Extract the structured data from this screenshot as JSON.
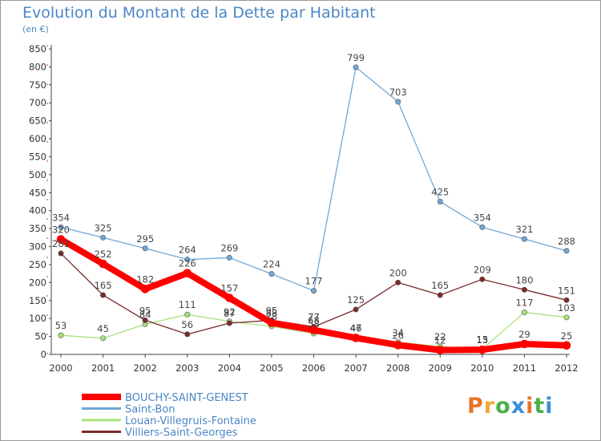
{
  "header": {
    "title": "Evolution du Montant de la Dette par Habitant",
    "unit": "(en €)"
  },
  "logo": {
    "text": "Proxiti",
    "colors": [
      "#e8732a",
      "#f2a43a",
      "#4bb04a",
      "#3c8dd6",
      "#e8732a",
      "#4bb04a",
      "#3c8dd6"
    ]
  },
  "chart_data": {
    "type": "line",
    "title": "Evolution du Montant de la Dette par Habitant",
    "subtitle": "(en €)",
    "x": [
      "2000",
      "2001",
      "2002",
      "2003",
      "2004",
      "2005",
      "2006",
      "2007",
      "2008",
      "2009",
      "2010",
      "2011",
      "2012"
    ],
    "ylim": [
      0,
      850
    ],
    "yticks": [
      0,
      50,
      100,
      150,
      200,
      250,
      300,
      350,
      400,
      450,
      500,
      550,
      600,
      650,
      700,
      750,
      800,
      850
    ],
    "grid": false,
    "legend_position": "bottom-left",
    "series": [
      {
        "name": "BOUCHY-SAINT-GENEST",
        "color": "#ff0000",
        "emphasis": true,
        "values": [
          320,
          252,
          182,
          226,
          157,
          88,
          68,
          46,
          26,
          12,
          13,
          29,
          25
        ]
      },
      {
        "name": "Saint-Bon",
        "color": "#6fa8d8",
        "values": [
          354,
          325,
          295,
          264,
          269,
          224,
          177,
          799,
          703,
          425,
          354,
          321,
          288
        ]
      },
      {
        "name": "Louan-Villegruis-Fontaine",
        "color": "#a6e27a",
        "values": [
          53,
          45,
          84,
          111,
          92,
          78,
          58,
          47,
          34,
          22,
          15,
          117,
          103
        ]
      },
      {
        "name": "Villiers-Saint-Georges",
        "color": "#7a2a2a",
        "values": [
          281,
          165,
          95,
          56,
          87,
          95,
          77,
          125,
          200,
          165,
          209,
          180,
          151
        ]
      }
    ]
  }
}
